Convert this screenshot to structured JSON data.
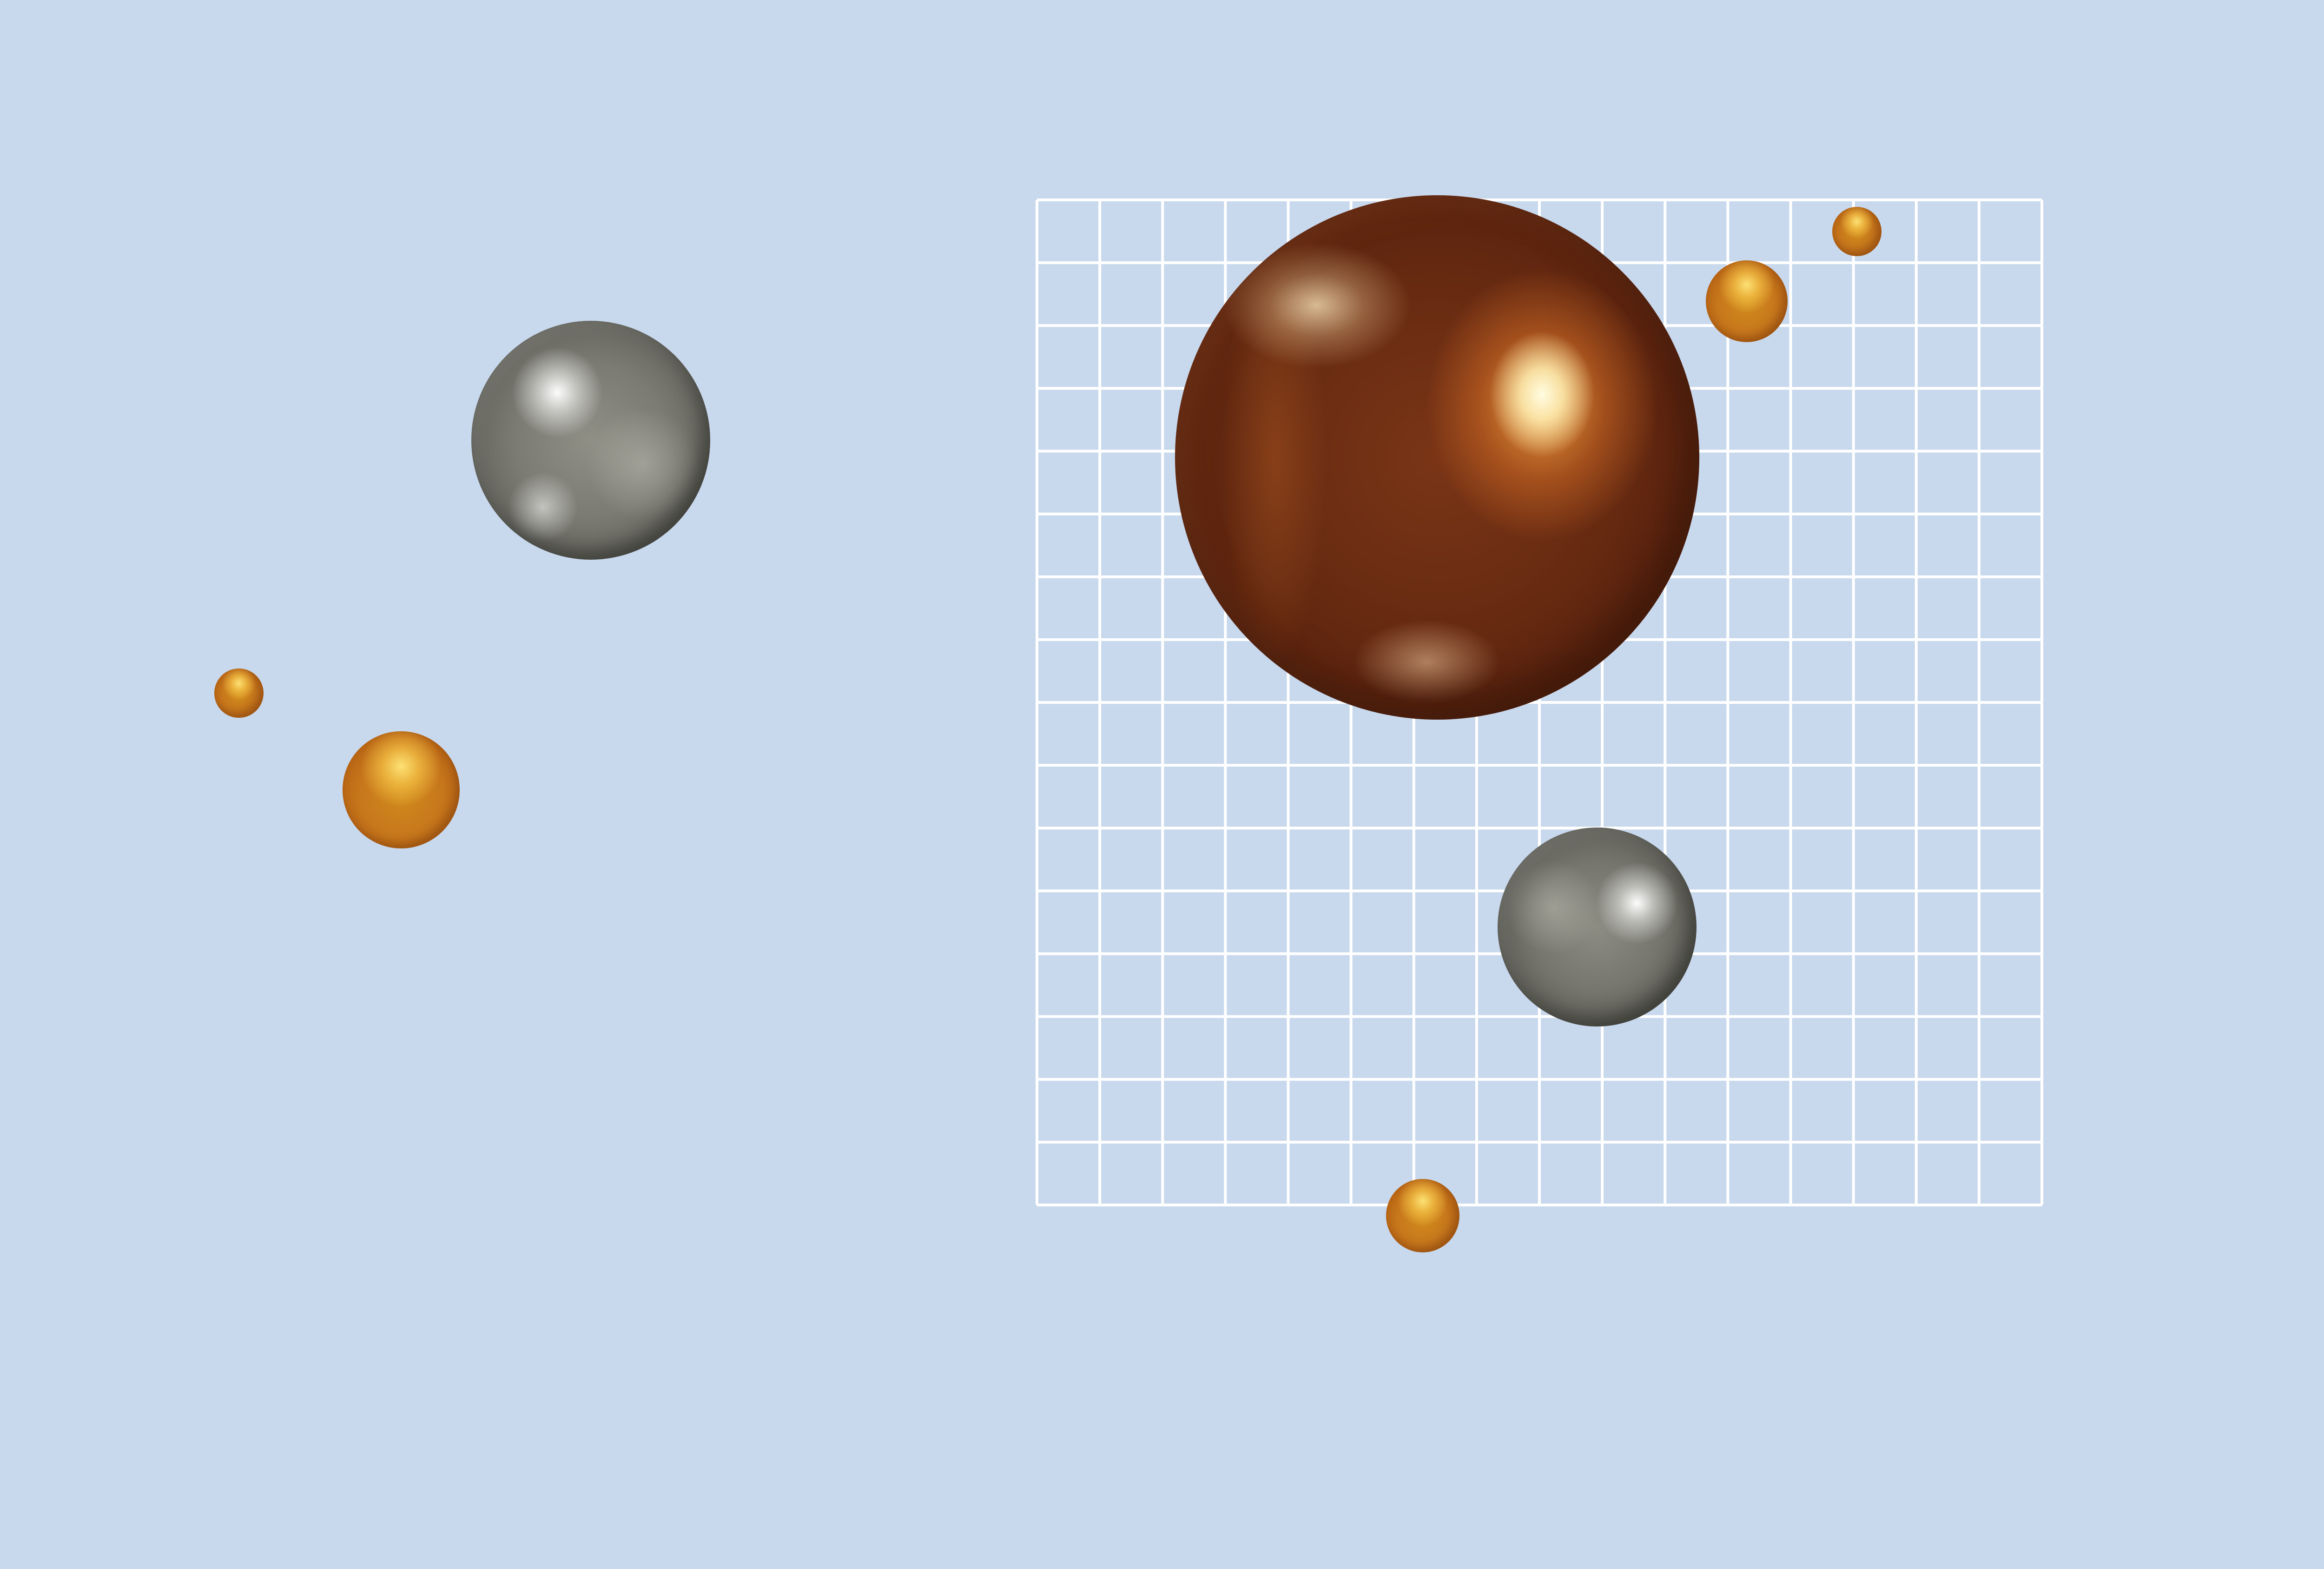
{
  "scene": {
    "background_color": "#c8d8ed",
    "grid": {
      "line_color": "#ffffff",
      "columns": 16,
      "rows": 16
    },
    "spheres": [
      {
        "material": "copper",
        "color": "#6a2c12"
      },
      {
        "material": "silver",
        "color": "#7b7b73"
      },
      {
        "material": "silver",
        "color": "#7b7b73"
      },
      {
        "material": "gold",
        "color": "#c8781c"
      },
      {
        "material": "gold",
        "color": "#c8781c"
      },
      {
        "material": "gold",
        "color": "#c8781c"
      },
      {
        "material": "gold",
        "color": "#c8781c"
      },
      {
        "material": "gold",
        "color": "#c8781c"
      }
    ]
  }
}
